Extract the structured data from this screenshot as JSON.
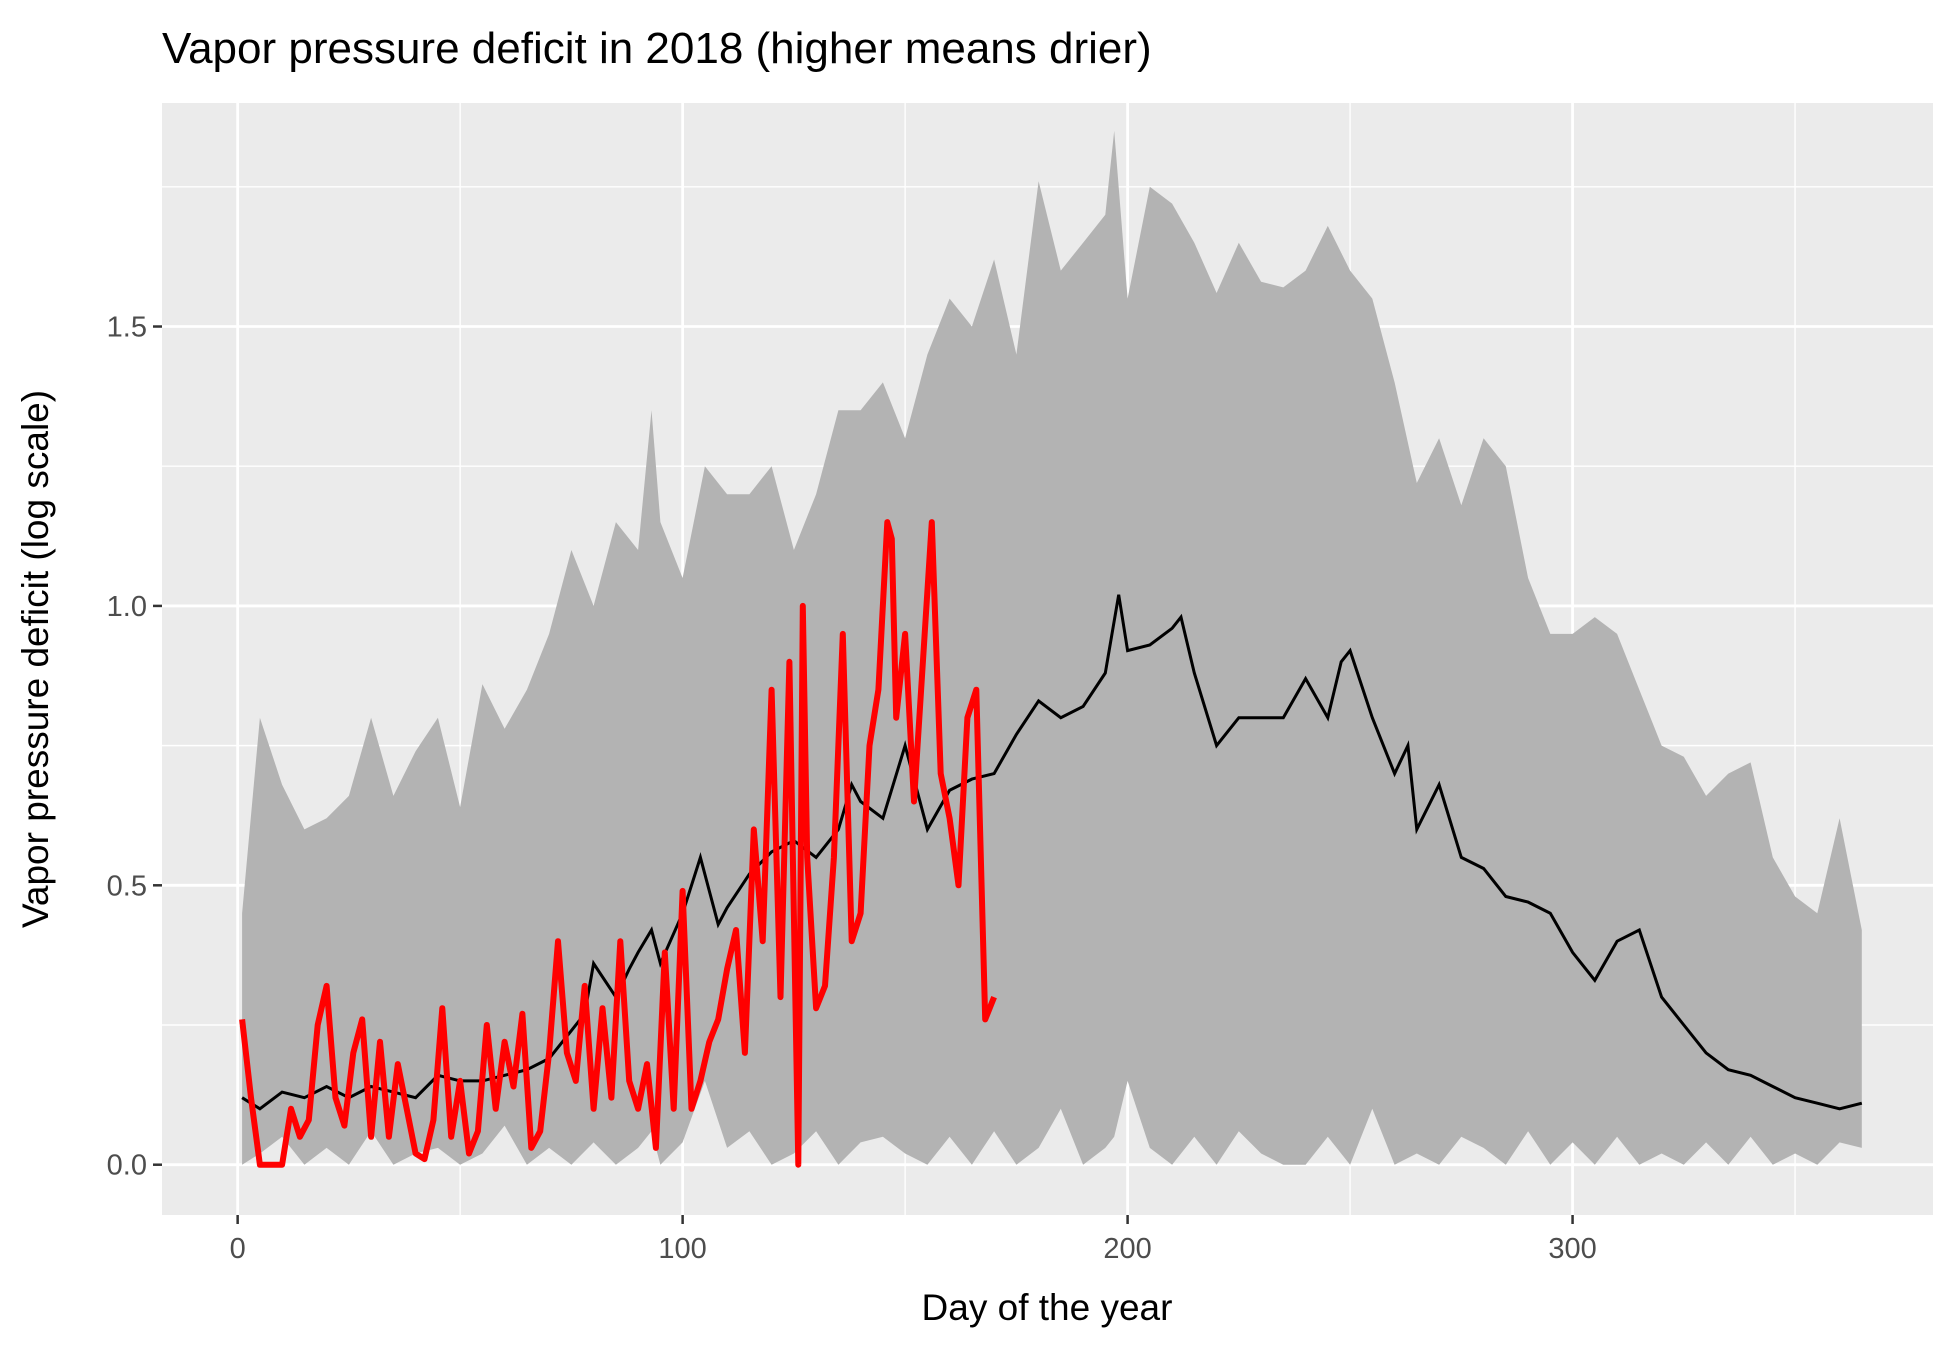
{
  "chart_data": {
    "type": "line",
    "title": "Vapor pressure deficit in 2018 (higher means drier)",
    "xlabel": "Day of the year",
    "ylabel": "Vapor pressure deficit (log scale)",
    "xlim": [
      -17,
      381
    ],
    "ylim": [
      -0.09,
      1.9
    ],
    "x_ticks": [
      0,
      100,
      200,
      300
    ],
    "x_tick_labels": [
      "0",
      "100",
      "200",
      "300"
    ],
    "y_ticks": [
      0.0,
      0.5,
      1.0,
      1.5
    ],
    "y_tick_labels": [
      "0.0",
      "0.5",
      "1.0",
      "1.5"
    ],
    "grid": true,
    "legend": "none",
    "colors": {
      "panel": "#ebebeb",
      "grid": "#ffffff",
      "band": "#b3b3b3",
      "median": "#000000",
      "year_2018": "#ff0000"
    },
    "band": {
      "x": [
        1,
        5,
        10,
        15,
        20,
        25,
        30,
        35,
        40,
        45,
        50,
        55,
        60,
        65,
        70,
        75,
        80,
        85,
        90,
        93,
        95,
        100,
        105,
        110,
        115,
        120,
        125,
        130,
        135,
        140,
        145,
        150,
        155,
        160,
        165,
        170,
        175,
        180,
        185,
        190,
        195,
        197,
        200,
        205,
        210,
        215,
        220,
        225,
        230,
        235,
        240,
        245,
        250,
        255,
        260,
        265,
        270,
        275,
        280,
        285,
        290,
        295,
        300,
        305,
        310,
        315,
        320,
        325,
        330,
        335,
        340,
        345,
        350,
        355,
        360,
        365
      ],
      "upper": [
        0.45,
        0.8,
        0.68,
        0.6,
        0.62,
        0.66,
        0.8,
        0.66,
        0.74,
        0.8,
        0.64,
        0.86,
        0.78,
        0.85,
        0.95,
        1.1,
        1.0,
        1.15,
        1.1,
        1.35,
        1.15,
        1.05,
        1.25,
        1.2,
        1.2,
        1.25,
        1.1,
        1.2,
        1.35,
        1.35,
        1.4,
        1.3,
        1.45,
        1.55,
        1.5,
        1.62,
        1.45,
        1.76,
        1.6,
        1.65,
        1.7,
        1.85,
        1.55,
        1.75,
        1.72,
        1.65,
        1.56,
        1.65,
        1.58,
        1.57,
        1.6,
        1.68,
        1.6,
        1.55,
        1.4,
        1.22,
        1.3,
        1.18,
        1.3,
        1.25,
        1.05,
        0.95,
        0.95,
        0.98,
        0.95,
        0.85,
        0.75,
        0.73,
        0.66,
        0.7,
        0.72,
        0.55,
        0.48,
        0.45,
        0.62,
        0.42
      ],
      "lower": [
        0.0,
        0.02,
        0.05,
        0.0,
        0.03,
        0.0,
        0.06,
        0.0,
        0.02,
        0.03,
        0.0,
        0.02,
        0.07,
        0.0,
        0.03,
        0.0,
        0.04,
        0.0,
        0.03,
        0.06,
        0.0,
        0.04,
        0.15,
        0.03,
        0.06,
        0.0,
        0.02,
        0.06,
        0.0,
        0.04,
        0.05,
        0.02,
        0.0,
        0.05,
        0.0,
        0.06,
        0.0,
        0.03,
        0.1,
        0.0,
        0.03,
        0.05,
        0.15,
        0.03,
        0.0,
        0.05,
        0.0,
        0.06,
        0.02,
        0.0,
        0.0,
        0.05,
        0.0,
        0.1,
        0.0,
        0.02,
        0.0,
        0.05,
        0.03,
        0.0,
        0.06,
        0.0,
        0.04,
        0.0,
        0.05,
        0.0,
        0.02,
        0.0,
        0.04,
        0.0,
        0.05,
        0.0,
        0.02,
        0.0,
        0.04,
        0.03
      ]
    },
    "series": [
      {
        "values_x": [
          1,
          5,
          10,
          15,
          20,
          25,
          30,
          35,
          40,
          45,
          50,
          55,
          60,
          65,
          70,
          75,
          78,
          80,
          85,
          88,
          90,
          93,
          95,
          100,
          104,
          108,
          110,
          115,
          120,
          125,
          130,
          135,
          138,
          140,
          145,
          150,
          155,
          160,
          165,
          170,
          175,
          180,
          185,
          190,
          195,
          198,
          200,
          205,
          210,
          212,
          215,
          220,
          225,
          230,
          235,
          240,
          245,
          248,
          250,
          255,
          260,
          263,
          265,
          270,
          275,
          280,
          285,
          290,
          295,
          300,
          305,
          310,
          315,
          320,
          325,
          330,
          335,
          340,
          345,
          350,
          355,
          360,
          365
        ],
        "values": [
          0.12,
          0.1,
          0.13,
          0.12,
          0.14,
          0.12,
          0.14,
          0.13,
          0.12,
          0.16,
          0.15,
          0.15,
          0.16,
          0.17,
          0.19,
          0.24,
          0.27,
          0.36,
          0.3,
          0.35,
          0.38,
          0.42,
          0.36,
          0.45,
          0.55,
          0.43,
          0.46,
          0.52,
          0.56,
          0.58,
          0.55,
          0.6,
          0.68,
          0.65,
          0.62,
          0.75,
          0.6,
          0.67,
          0.69,
          0.7,
          0.77,
          0.83,
          0.8,
          0.82,
          0.88,
          1.02,
          0.92,
          0.93,
          0.96,
          0.98,
          0.88,
          0.75,
          0.8,
          0.8,
          0.8,
          0.87,
          0.8,
          0.9,
          0.92,
          0.8,
          0.7,
          0.75,
          0.6,
          0.68,
          0.55,
          0.53,
          0.48,
          0.47,
          0.45,
          0.38,
          0.33,
          0.4,
          0.42,
          0.3,
          0.25,
          0.2,
          0.17,
          0.16,
          0.14,
          0.12,
          0.11,
          0.1,
          0.11
        ]
      },
      {
        "values_x": [
          1,
          3,
          5,
          8,
          10,
          12,
          14,
          16,
          18,
          20,
          22,
          24,
          26,
          28,
          30,
          32,
          34,
          36,
          38,
          40,
          42,
          44,
          46,
          48,
          50,
          52,
          54,
          56,
          58,
          60,
          62,
          64,
          66,
          68,
          70,
          72,
          74,
          76,
          78,
          80,
          82,
          84,
          86,
          88,
          90,
          92,
          94,
          96,
          98,
          100,
          102,
          104,
          106,
          108,
          110,
          112,
          114,
          116,
          118,
          120,
          122,
          124,
          126,
          127,
          128,
          130,
          132,
          134,
          136,
          138,
          140,
          142,
          144,
          146,
          147,
          148,
          150,
          152,
          154,
          156,
          158,
          160,
          162,
          164,
          166,
          168,
          170
        ],
        "values": [
          0.26,
          0.12,
          0.0,
          0.0,
          0.0,
          0.1,
          0.05,
          0.08,
          0.25,
          0.32,
          0.12,
          0.07,
          0.2,
          0.26,
          0.05,
          0.22,
          0.05,
          0.18,
          0.1,
          0.02,
          0.01,
          0.08,
          0.28,
          0.05,
          0.15,
          0.02,
          0.06,
          0.25,
          0.1,
          0.22,
          0.14,
          0.27,
          0.03,
          0.06,
          0.2,
          0.4,
          0.2,
          0.15,
          0.32,
          0.1,
          0.28,
          0.12,
          0.4,
          0.15,
          0.1,
          0.18,
          0.03,
          0.38,
          0.1,
          0.49,
          0.1,
          0.15,
          0.22,
          0.26,
          0.35,
          0.42,
          0.2,
          0.6,
          0.4,
          0.85,
          0.3,
          0.9,
          0.0,
          1.0,
          0.55,
          0.28,
          0.32,
          0.55,
          0.95,
          0.4,
          0.45,
          0.75,
          0.85,
          1.15,
          1.12,
          0.8,
          0.95,
          0.65,
          0.9,
          1.15,
          0.7,
          0.62,
          0.5,
          0.8,
          0.85,
          0.26,
          0.3
        ]
      }
    ]
  }
}
